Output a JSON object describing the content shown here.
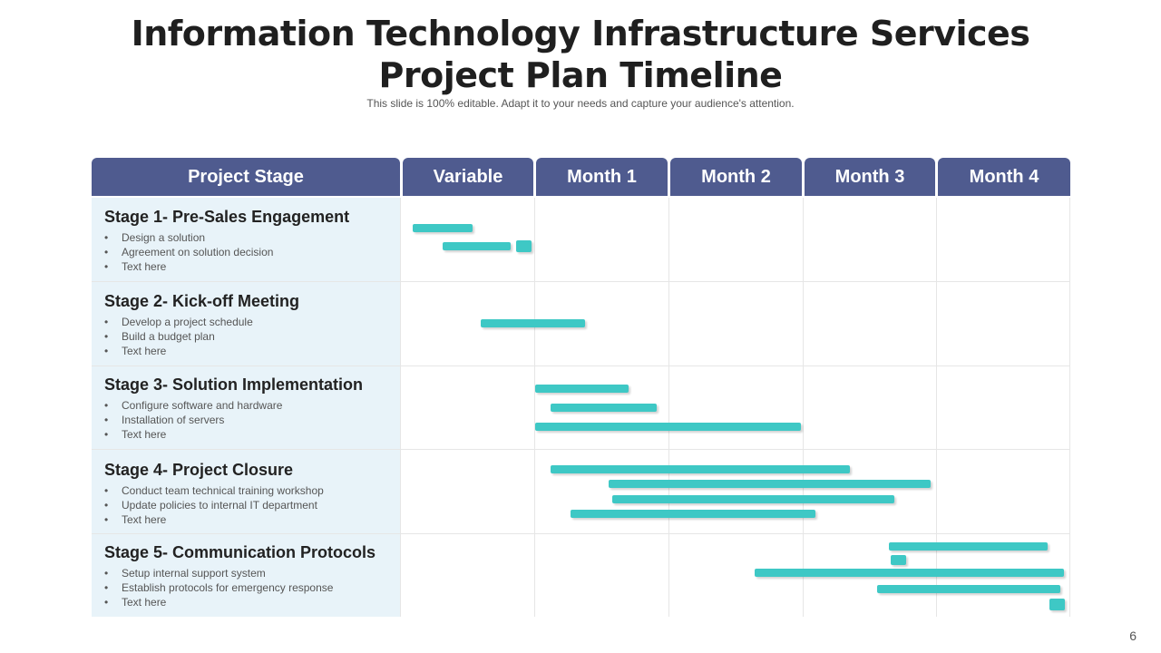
{
  "title": "Information Technology Infrastructure Services Project Plan Timeline",
  "subtitle": "This slide is 100% editable. Adapt it to your needs and capture your audience's attention.",
  "columns": [
    "Project Stage",
    "Variable",
    "Month 1",
    "Month 2",
    "Month 3",
    "Month 4"
  ],
  "stages": [
    {
      "title": "Stage 1- Pre-Sales Engagement",
      "items": [
        "Design a solution",
        "Agreement on solution decision",
        "Text here"
      ]
    },
    {
      "title": "Stage 2- Kick-off Meeting",
      "items": [
        "Develop a project schedule",
        "Build a budget plan",
        "Text here"
      ]
    },
    {
      "title": "Stage 3- Solution Implementation",
      "items": [
        "Configure software and hardware",
        "Installation of servers",
        "Text here"
      ]
    },
    {
      "title": "Stage 4- Project Closure",
      "items": [
        "Conduct team technical training workshop",
        "Update policies to internal IT department",
        "Text here"
      ]
    },
    {
      "title": "Stage 5- Communication Protocols",
      "items": [
        "Setup internal support system",
        "Establish protocols for emergency response",
        "Text here"
      ]
    }
  ],
  "bar_color": "#3ec8c5",
  "header_color": "#4f5b8f",
  "page_number": "6"
}
